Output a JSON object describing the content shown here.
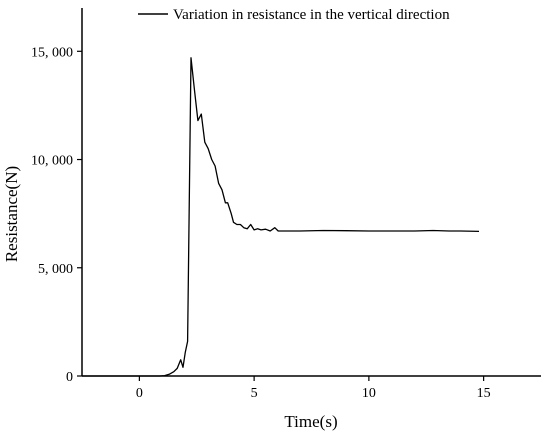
{
  "chart_data": {
    "type": "line",
    "title": "",
    "xlabel": "Time(s)",
    "ylabel": "Resistance(N)",
    "xlim": [
      -2.5,
      17.5
    ],
    "ylim": [
      0,
      17000
    ],
    "x_ticks": [
      0,
      5,
      10,
      15
    ],
    "x_tick_labels": [
      "0",
      "5",
      "10",
      "15"
    ],
    "y_ticks": [
      0,
      5000,
      10000,
      15000
    ],
    "y_tick_labels": [
      "0",
      "5, 000",
      "10, 000",
      "15, 000"
    ],
    "grid": false,
    "legend_position": "top",
    "series": [
      {
        "name": "Variation in resistance in the vertical direction",
        "color": "#000000",
        "x": [
          -2.5,
          0.9,
          1.1,
          1.3,
          1.5,
          1.65,
          1.8,
          1.9,
          2.0,
          2.1,
          2.25,
          2.4,
          2.55,
          2.7,
          2.85,
          3.0,
          3.15,
          3.3,
          3.45,
          3.6,
          3.75,
          3.85,
          4.0,
          4.1,
          4.25,
          4.4,
          4.55,
          4.7,
          4.85,
          5.0,
          5.15,
          5.3,
          5.5,
          5.7,
          5.9,
          6.05,
          6.2,
          7.0,
          8.0,
          9.0,
          10.0,
          11.0,
          12.0,
          12.8,
          13.5,
          14.0,
          14.8
        ],
        "values": [
          0,
          0,
          20,
          80,
          200,
          350,
          750,
          400,
          1100,
          1600,
          14700,
          13200,
          11800,
          12100,
          10800,
          10500,
          10000,
          9700,
          8900,
          8600,
          8000,
          8000,
          7500,
          7100,
          7000,
          7000,
          6850,
          6800,
          7000,
          6750,
          6800,
          6750,
          6780,
          6700,
          6850,
          6700,
          6700,
          6700,
          6720,
          6710,
          6700,
          6700,
          6700,
          6720,
          6700,
          6700,
          6680
        ]
      }
    ]
  }
}
